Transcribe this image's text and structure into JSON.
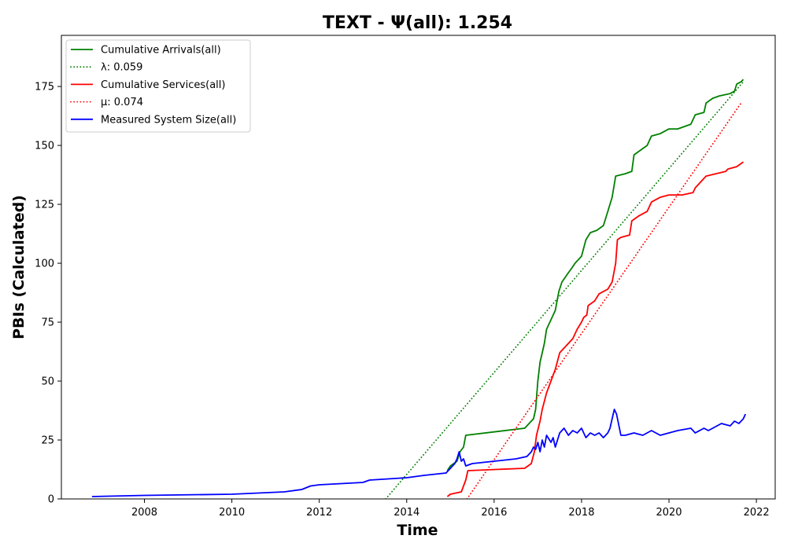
{
  "chart_data": {
    "type": "line",
    "title": "TEXT -  Ψ(all): 1.254",
    "xlabel": "Time",
    "ylabel": "PBIs (Calculated)",
    "xlim": [
      2006.1,
      2022.43
    ],
    "ylim": [
      0,
      196.7
    ],
    "x_ticks": [
      2008,
      2010,
      2012,
      2014,
      2016,
      2018,
      2020,
      2022
    ],
    "y_ticks": [
      0,
      25,
      50,
      75,
      100,
      125,
      150,
      175
    ],
    "grid": false,
    "legend_position": "top-left",
    "series": [
      {
        "name": "Cumulative Arrivals(all)",
        "style": "solid",
        "color": "#008000",
        "points": [
          [
            2014.93,
            12
          ],
          [
            2015.0,
            14
          ],
          [
            2015.15,
            16
          ],
          [
            2015.22,
            20
          ],
          [
            2015.3,
            22
          ],
          [
            2015.35,
            27
          ],
          [
            2016.7,
            30
          ],
          [
            2016.9,
            34
          ],
          [
            2016.95,
            38
          ],
          [
            2017.0,
            50
          ],
          [
            2017.05,
            58
          ],
          [
            2017.1,
            62
          ],
          [
            2017.15,
            66
          ],
          [
            2017.2,
            72
          ],
          [
            2017.3,
            76
          ],
          [
            2017.4,
            80
          ],
          [
            2017.48,
            88
          ],
          [
            2017.55,
            92
          ],
          [
            2017.7,
            96
          ],
          [
            2017.78,
            98
          ],
          [
            2017.85,
            100
          ],
          [
            2018.0,
            103
          ],
          [
            2018.1,
            110
          ],
          [
            2018.2,
            113
          ],
          [
            2018.35,
            114
          ],
          [
            2018.5,
            116
          ],
          [
            2018.6,
            122
          ],
          [
            2018.7,
            128
          ],
          [
            2018.78,
            137
          ],
          [
            2019.0,
            138
          ],
          [
            2019.15,
            139
          ],
          [
            2019.2,
            146
          ],
          [
            2019.35,
            148
          ],
          [
            2019.5,
            150
          ],
          [
            2019.6,
            154
          ],
          [
            2019.8,
            155
          ],
          [
            2020.0,
            157
          ],
          [
            2020.2,
            157
          ],
          [
            2020.5,
            159
          ],
          [
            2020.6,
            163
          ],
          [
            2020.8,
            164
          ],
          [
            2020.85,
            168
          ],
          [
            2021.0,
            170
          ],
          [
            2021.15,
            171
          ],
          [
            2021.4,
            172
          ],
          [
            2021.5,
            173
          ],
          [
            2021.55,
            176
          ],
          [
            2021.65,
            177
          ],
          [
            2021.7,
            178
          ]
        ]
      },
      {
        "name": "λ: 0.059",
        "style": "dotted",
        "color": "#008000",
        "points": [
          [
            2013.52,
            0
          ],
          [
            2021.7,
            177
          ]
        ]
      },
      {
        "name": "Cumulative Services(all)",
        "style": "solid",
        "color": "#ff0000",
        "points": [
          [
            2014.93,
            1
          ],
          [
            2015.0,
            2
          ],
          [
            2015.25,
            3
          ],
          [
            2015.35,
            8
          ],
          [
            2015.4,
            12
          ],
          [
            2016.7,
            13
          ],
          [
            2016.85,
            15
          ],
          [
            2016.92,
            20
          ],
          [
            2016.97,
            27
          ],
          [
            2017.05,
            33
          ],
          [
            2017.1,
            38
          ],
          [
            2017.2,
            45
          ],
          [
            2017.3,
            50
          ],
          [
            2017.4,
            55
          ],
          [
            2017.5,
            62
          ],
          [
            2017.6,
            64
          ],
          [
            2017.7,
            66
          ],
          [
            2017.8,
            68
          ],
          [
            2017.9,
            72
          ],
          [
            2018.0,
            75
          ],
          [
            2018.05,
            77
          ],
          [
            2018.12,
            78
          ],
          [
            2018.15,
            82
          ],
          [
            2018.3,
            84
          ],
          [
            2018.4,
            87
          ],
          [
            2018.6,
            89
          ],
          [
            2018.7,
            92
          ],
          [
            2018.78,
            100
          ],
          [
            2018.82,
            110
          ],
          [
            2018.9,
            111
          ],
          [
            2019.1,
            112
          ],
          [
            2019.15,
            118
          ],
          [
            2019.3,
            120
          ],
          [
            2019.5,
            122
          ],
          [
            2019.6,
            126
          ],
          [
            2019.7,
            127
          ],
          [
            2019.8,
            128
          ],
          [
            2020.0,
            129
          ],
          [
            2020.3,
            129
          ],
          [
            2020.55,
            130
          ],
          [
            2020.6,
            132
          ],
          [
            2020.7,
            134
          ],
          [
            2020.85,
            137
          ],
          [
            2021.3,
            139
          ],
          [
            2021.35,
            140
          ],
          [
            2021.55,
            141
          ],
          [
            2021.7,
            143
          ]
        ]
      },
      {
        "name": "μ: 0.074",
        "style": "dotted",
        "color": "#ff0000",
        "points": [
          [
            2015.38,
            0
          ],
          [
            2021.65,
            168
          ]
        ]
      },
      {
        "name": "Measured System Size(all)",
        "style": "solid",
        "color": "#0000ff",
        "points": [
          [
            2006.8,
            1
          ],
          [
            2008.0,
            1.5
          ],
          [
            2010.0,
            2
          ],
          [
            2011.2,
            3
          ],
          [
            2011.6,
            4
          ],
          [
            2011.8,
            5.5
          ],
          [
            2012.0,
            6
          ],
          [
            2013.0,
            7
          ],
          [
            2013.15,
            8
          ],
          [
            2014.0,
            9
          ],
          [
            2014.4,
            10
          ],
          [
            2014.9,
            11
          ],
          [
            2014.95,
            12
          ],
          [
            2015.0,
            13
          ],
          [
            2015.1,
            15
          ],
          [
            2015.15,
            17
          ],
          [
            2015.2,
            20
          ],
          [
            2015.25,
            16
          ],
          [
            2015.3,
            17
          ],
          [
            2015.35,
            14
          ],
          [
            2015.5,
            15
          ],
          [
            2016.0,
            16
          ],
          [
            2016.5,
            17
          ],
          [
            2016.75,
            18
          ],
          [
            2016.85,
            20
          ],
          [
            2016.9,
            22
          ],
          [
            2016.95,
            21
          ],
          [
            2017.0,
            24
          ],
          [
            2017.05,
            20
          ],
          [
            2017.1,
            25
          ],
          [
            2017.15,
            22
          ],
          [
            2017.2,
            27
          ],
          [
            2017.3,
            24
          ],
          [
            2017.35,
            26
          ],
          [
            2017.4,
            22
          ],
          [
            2017.5,
            28
          ],
          [
            2017.6,
            30
          ],
          [
            2017.7,
            27
          ],
          [
            2017.8,
            29
          ],
          [
            2017.9,
            28
          ],
          [
            2018.0,
            30
          ],
          [
            2018.1,
            26
          ],
          [
            2018.2,
            28
          ],
          [
            2018.3,
            27
          ],
          [
            2018.4,
            28
          ],
          [
            2018.5,
            26
          ],
          [
            2018.6,
            28
          ],
          [
            2018.65,
            30
          ],
          [
            2018.7,
            34
          ],
          [
            2018.75,
            38
          ],
          [
            2018.8,
            36
          ],
          [
            2018.9,
            27
          ],
          [
            2019.0,
            27
          ],
          [
            2019.2,
            28
          ],
          [
            2019.4,
            27
          ],
          [
            2019.6,
            29
          ],
          [
            2019.8,
            27
          ],
          [
            2020.0,
            28
          ],
          [
            2020.2,
            29
          ],
          [
            2020.5,
            30
          ],
          [
            2020.6,
            28
          ],
          [
            2020.8,
            30
          ],
          [
            2020.9,
            29
          ],
          [
            2021.0,
            30
          ],
          [
            2021.2,
            32
          ],
          [
            2021.4,
            31
          ],
          [
            2021.5,
            33
          ],
          [
            2021.6,
            32
          ],
          [
            2021.7,
            34
          ],
          [
            2021.75,
            36
          ]
        ]
      }
    ]
  }
}
